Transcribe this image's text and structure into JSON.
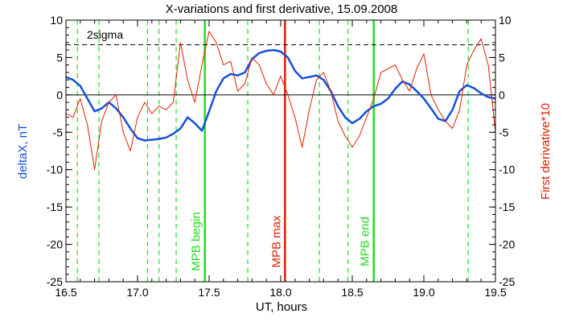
{
  "chart_data": {
    "type": "line",
    "title": "X-variations and first derivative, 15.09.2008",
    "xlabel": "UT, hours",
    "ylabel_left": "deltaX, nT",
    "ylabel_right": "First derivative*10",
    "xlim": [
      16.5,
      19.5
    ],
    "ylim": [
      -25,
      10
    ],
    "xticks": [
      "16.5",
      "17.0",
      "17.5",
      "18.0",
      "18.5",
      "19.0",
      "19.5"
    ],
    "yticks": [
      "10",
      "5",
      "0",
      "-5",
      "-10",
      "-15",
      "-20",
      "-25"
    ],
    "sigma_label": "2sigma",
    "sigma_level": 6.7,
    "zero_level": 0,
    "colors": {
      "deltaX": "#1450dc",
      "derivative": "#e02000",
      "markers": "#22dd22",
      "max_marker": "#e02000"
    },
    "series": [
      {
        "name": "deltaX, nT",
        "color": "#1450dc",
        "x": [
          16.5,
          16.55,
          16.6,
          16.65,
          16.7,
          16.75,
          16.8,
          16.85,
          16.9,
          16.95,
          17.0,
          17.05,
          17.1,
          17.15,
          17.2,
          17.25,
          17.3,
          17.35,
          17.4,
          17.45,
          17.5,
          17.55,
          17.6,
          17.65,
          17.7,
          17.75,
          17.8,
          17.85,
          17.9,
          17.95,
          18.0,
          18.05,
          18.1,
          18.15,
          18.2,
          18.25,
          18.3,
          18.35,
          18.4,
          18.45,
          18.5,
          18.55,
          18.6,
          18.65,
          18.7,
          18.75,
          18.8,
          18.85,
          18.9,
          18.95,
          19.0,
          19.05,
          19.1,
          19.15,
          19.2,
          19.25,
          19.3,
          19.35,
          19.4,
          19.45,
          19.5
        ],
        "values": [
          2.4,
          2.0,
          1.2,
          -0.5,
          -2.2,
          -1.8,
          -1.0,
          -1.8,
          -3.0,
          -4.5,
          -5.8,
          -6.1,
          -6.0,
          -5.9,
          -5.7,
          -5.2,
          -4.5,
          -3.0,
          -3.8,
          -4.8,
          -2.2,
          0.5,
          2.2,
          2.8,
          2.6,
          3.0,
          4.8,
          5.6,
          5.9,
          6.0,
          5.8,
          5.0,
          3.2,
          2.2,
          2.4,
          2.6,
          2.0,
          0.5,
          -1.5,
          -3.0,
          -3.8,
          -3.2,
          -2.2,
          -1.5,
          -1.2,
          -0.5,
          0.8,
          1.8,
          1.4,
          0.5,
          -0.5,
          -1.8,
          -3.2,
          -3.5,
          -2.0,
          0.5,
          1.3,
          0.9,
          0.2,
          -0.3,
          -0.5
        ]
      },
      {
        "name": "First derivative*10",
        "color": "#e02000",
        "x": [
          16.5,
          16.55,
          16.6,
          16.65,
          16.7,
          16.75,
          16.8,
          16.85,
          16.9,
          16.95,
          17.0,
          17.05,
          17.1,
          17.15,
          17.2,
          17.25,
          17.3,
          17.35,
          17.4,
          17.45,
          17.5,
          17.55,
          17.6,
          17.65,
          17.7,
          17.75,
          17.8,
          17.85,
          17.9,
          17.95,
          18.0,
          18.05,
          18.1,
          18.15,
          18.2,
          18.25,
          18.3,
          18.35,
          18.4,
          18.45,
          18.5,
          18.55,
          18.6,
          18.65,
          18.7,
          18.75,
          18.8,
          18.85,
          18.9,
          18.95,
          19.0,
          19.05,
          19.1,
          19.15,
          19.2,
          19.25,
          19.3,
          19.35,
          19.4,
          19.45,
          19.5
        ],
        "values": [
          -2.5,
          -3.0,
          -0.5,
          -4.0,
          -10.0,
          -3.5,
          -1.0,
          0.0,
          -5.0,
          -7.5,
          -3.0,
          -1.0,
          -2.5,
          -1.5,
          -2.0,
          -1.0,
          7.0,
          2.0,
          -1.0,
          4.0,
          8.5,
          7.0,
          4.0,
          4.5,
          0.5,
          1.5,
          5.0,
          4.0,
          1.5,
          0.0,
          2.5,
          0.0,
          -3.0,
          -7.0,
          -2.0,
          2.0,
          3.0,
          0.5,
          -3.5,
          -5.5,
          -7.0,
          -5.5,
          -3.0,
          -0.5,
          3.0,
          3.5,
          4.0,
          2.0,
          0.5,
          3.5,
          5.5,
          0.0,
          -2.0,
          -3.5,
          -4.5,
          -2.0,
          4.0,
          6.0,
          7.5,
          4.0,
          -5.0
        ]
      }
    ],
    "dashed_markers": [
      16.58,
      16.73,
      17.07,
      17.15,
      17.27,
      17.77,
      18.27,
      18.47,
      19.31
    ],
    "solid_markers": [
      {
        "x": 17.47,
        "label": "MPB begin",
        "color": "#22dd22"
      },
      {
        "x": 18.03,
        "label": "MPB max",
        "color": "#e02000"
      },
      {
        "x": 18.65,
        "label": "MPB end",
        "color": "#22dd22"
      }
    ]
  }
}
